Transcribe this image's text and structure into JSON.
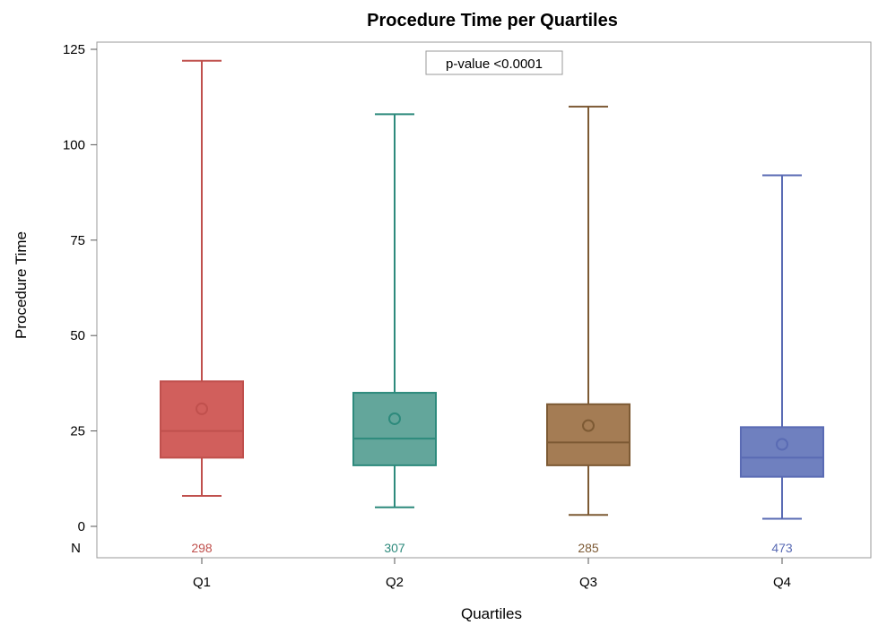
{
  "chart_data": {
    "type": "box",
    "title": "Procedure Time per Quartiles",
    "xlabel": "Quartiles",
    "ylabel": "Procedure Time",
    "ylim": [
      -8,
      127
    ],
    "yticks": [
      0,
      25,
      50,
      75,
      100,
      125
    ],
    "annotation": "p-value <0.0001",
    "n_row_label": "N",
    "categories": [
      "Q1",
      "Q2",
      "Q3",
      "Q4"
    ],
    "boxes": [
      {
        "category": "Q1",
        "min": 8,
        "q1": 18,
        "median": 25,
        "mean": 30.8,
        "q3": 38,
        "max": 122,
        "n": "298",
        "color": "#c0504d",
        "fill": "#d15f5c"
      },
      {
        "category": "Q2",
        "min": 5,
        "q1": 16,
        "median": 23,
        "mean": 28.2,
        "q3": 35,
        "max": 108,
        "n": "307",
        "color": "#2d8a7c",
        "fill": "#63a69b"
      },
      {
        "category": "Q3",
        "min": 3,
        "q1": 16,
        "median": 22,
        "mean": 26.4,
        "q3": 32,
        "max": 110,
        "n": "285",
        "color": "#7d5a34",
        "fill": "#a47c54"
      },
      {
        "category": "Q4",
        "min": 2,
        "q1": 13,
        "median": 18,
        "mean": 21.5,
        "q3": 26,
        "max": 92,
        "n": "473",
        "color": "#5a6bb4",
        "fill": "#6f80bf"
      }
    ],
    "grid": false,
    "legend": "none"
  }
}
